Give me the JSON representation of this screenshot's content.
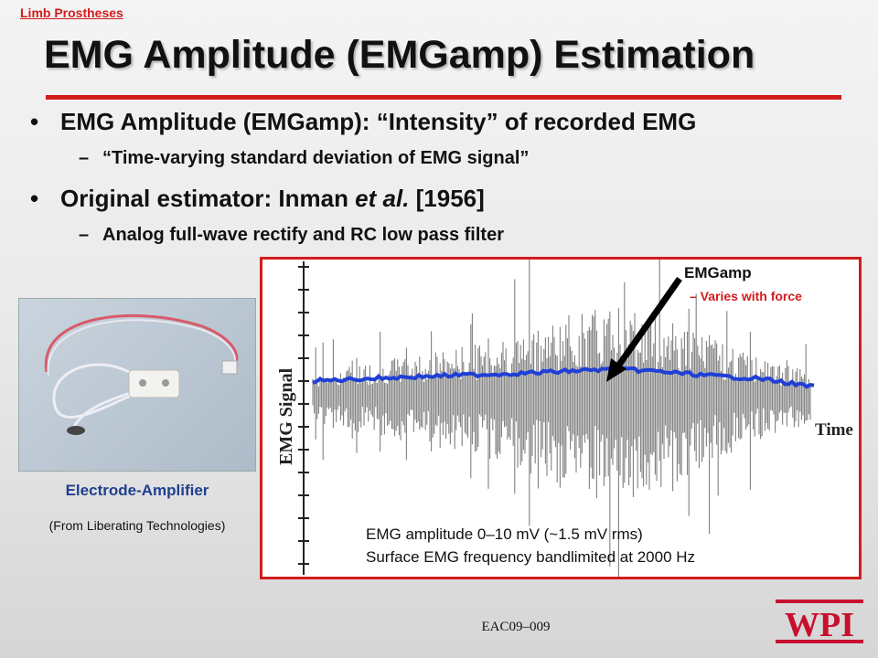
{
  "header": {
    "breadcrumb": "Limb Prostheses",
    "title": "EMG Amplitude (EMGamp) Estimation"
  },
  "bullets": [
    {
      "text": "EMG Amplitude (EMGamp): “Intensity” of recorded EMG",
      "sub": "“Time-varying standard deviation of EMG signal”"
    },
    {
      "text_prefix": "Original estimator: Inman ",
      "text_italic": "et al.",
      "text_suffix": " [1956]",
      "sub": "Analog full-wave rectify and RC low pass filter"
    }
  ],
  "bullet_marker": "•",
  "sub_marker": "–",
  "photo": {
    "caption": "Electrode-Amplifier",
    "credit": "(From Liberating Technologies)"
  },
  "figure": {
    "annotation_title": "EMGamp",
    "annotation_note": "– Varies with force",
    "note_line1": "EMG amplitude 0–10 mV (~1.5 mV rms)",
    "note_line2": "Surface EMG frequency bandlimited at 2000 Hz"
  },
  "chart_data": {
    "type": "line",
    "title": "",
    "xlabel": "Time",
    "ylabel": "EMG Signal",
    "series": [
      {
        "name": "",
        "color": "#808080",
        "values": []
      },
      {
        "name": "",
        "color": "#1f3fd6",
        "values": []
      }
    ]
  },
  "footer": {
    "text": "EAC09–009"
  },
  "logo": {
    "text": "WPI",
    "color": "#c8102e"
  },
  "colors": {
    "accent": "#d21c1c",
    "caption": "#1f3f8f",
    "envelope": "#1f3fd6"
  }
}
